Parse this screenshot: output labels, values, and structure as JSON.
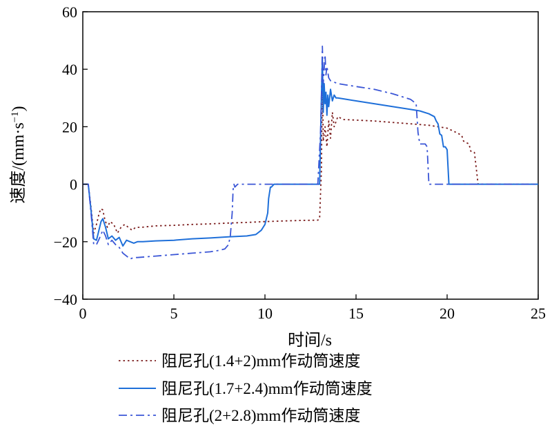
{
  "chart_data": {
    "type": "line",
    "xlabel": "时间/s",
    "ylabel_main": "速度/(mm·s",
    "ylabel_sup": "−1",
    "ylabel_close": ")",
    "xlim": [
      0,
      25
    ],
    "ylim": [
      -40,
      60
    ],
    "xticks": [
      0,
      5,
      10,
      15,
      20,
      25
    ],
    "yticks": [
      -40,
      -20,
      0,
      20,
      40,
      60
    ],
    "grid": false,
    "legend_position": "bottom",
    "series": [
      {
        "name": "阻尼孔(1.4+2)mm作动筒速度",
        "color": "#7b1c1c",
        "style": "dotted",
        "x": [
          0,
          0.3,
          0.45,
          0.6,
          0.75,
          0.9,
          1.0,
          1.1,
          1.2,
          1.35,
          1.5,
          1.7,
          1.9,
          2.1,
          2.3,
          2.5,
          2.7,
          2.9,
          3.2,
          4,
          5,
          6,
          7,
          8,
          9,
          10,
          11,
          12,
          12.9,
          13.0,
          13.1,
          13.15,
          13.2,
          13.3,
          13.4,
          13.5,
          13.6,
          13.7,
          13.8,
          14.0,
          14.3,
          15,
          16,
          17,
          18,
          19,
          20,
          20.5,
          20.8,
          20.9,
          21.2,
          21.3,
          21.4,
          21.5,
          21.7,
          25
        ],
        "y": [
          0,
          0,
          -8,
          -17,
          -14,
          -10,
          -8.5,
          -9,
          -12,
          -15,
          -13,
          -14,
          -17,
          -15,
          -14,
          -15,
          -16,
          -15,
          -15,
          -14.5,
          -14.3,
          -14,
          -13.8,
          -13.5,
          -13.3,
          -13,
          -12.8,
          -12.6,
          -12.5,
          -12,
          5,
          36,
          15,
          20,
          13,
          22,
          16,
          25,
          20,
          23.5,
          22.5,
          22.3,
          22,
          21.5,
          21,
          20.5,
          19.5,
          18,
          17,
          15,
          14,
          11.5,
          11.5,
          11,
          0,
          0
        ]
      },
      {
        "name": "阻尼孔(1.7+2.4)mm作动筒速度",
        "color": "#1e6fd9",
        "style": "solid",
        "x": [
          0,
          0.3,
          0.45,
          0.6,
          0.75,
          0.85,
          1.0,
          1.1,
          1.25,
          1.4,
          1.6,
          1.8,
          2.0,
          2.2,
          2.4,
          2.6,
          2.8,
          3.0,
          3.3,
          4,
          5,
          6,
          7,
          8,
          9,
          9.5,
          9.8,
          10.0,
          10.15,
          10.2,
          10.3,
          10.35,
          10.5,
          11,
          12,
          13.0,
          13.05,
          13.1,
          13.15,
          13.2,
          13.25,
          13.3,
          13.35,
          13.4,
          13.45,
          13.5,
          13.55,
          13.6,
          13.7,
          13.8,
          13.9,
          14.0,
          14.5,
          15,
          16,
          17,
          18,
          18.5,
          19.0,
          19.3,
          19.4,
          19.5,
          19.6,
          19.7,
          19.8,
          19.9,
          20.0,
          20.05,
          20.1,
          25
        ],
        "y": [
          0,
          0,
          -9,
          -19,
          -19.5,
          -17,
          -13,
          -12,
          -15,
          -19,
          -18,
          -19.5,
          -18.5,
          -21.5,
          -19.5,
          -20,
          -20.5,
          -20,
          -20,
          -19.7,
          -19.5,
          -19,
          -18.7,
          -18.3,
          -18,
          -17.5,
          -16,
          -14,
          -10,
          -5,
          -1,
          -1,
          0,
          0,
          0,
          0,
          15,
          30,
          44,
          25,
          35,
          28,
          32,
          24,
          31,
          27,
          30,
          33,
          29,
          31,
          30,
          30,
          29.5,
          29,
          28,
          27,
          26,
          25.5,
          24.5,
          23.5,
          22,
          21,
          17.5,
          17,
          13,
          13,
          12,
          6,
          0,
          0
        ]
      },
      {
        "name": "阻尼孔(2+2.8)mm作动筒速度",
        "color": "#3a55d6",
        "style": "dashdot",
        "x": [
          0,
          0.3,
          0.45,
          0.6,
          0.75,
          0.9,
          1.1,
          1.25,
          1.4,
          1.6,
          1.8,
          2.0,
          2.2,
          2.4,
          2.6,
          2.8,
          3,
          4,
          5,
          6,
          7,
          7.5,
          7.8,
          8.0,
          8.1,
          8.2,
          8.25,
          8.3,
          8.35,
          8.5,
          9,
          10,
          11,
          12,
          12.9,
          13.05,
          13.1,
          13.15,
          13.2,
          13.3,
          13.35,
          13.4,
          13.5,
          13.6,
          13.8,
          14.0,
          14.5,
          15,
          16,
          17,
          18.0,
          18.3,
          18.4,
          18.5,
          18.6,
          18.8,
          18.9,
          19.0,
          19.1,
          25
        ],
        "y": [
          0,
          0,
          -10,
          -21,
          -21,
          -19,
          -16,
          -18,
          -21,
          -19.5,
          -21,
          -22,
          -24,
          -25,
          -26,
          -25.5,
          -25.5,
          -25,
          -24.5,
          -24,
          -23.5,
          -23,
          -22.5,
          -21,
          -18,
          -10,
          -2,
          0,
          -1,
          0,
          0,
          0,
          0,
          0,
          0,
          18,
          30,
          48,
          35,
          45,
          38,
          41,
          37,
          36,
          35.5,
          35,
          34.5,
          34,
          33,
          31.5,
          29.5,
          28,
          18,
          14,
          14,
          14,
          13,
          0,
          0,
          0
        ]
      }
    ]
  }
}
